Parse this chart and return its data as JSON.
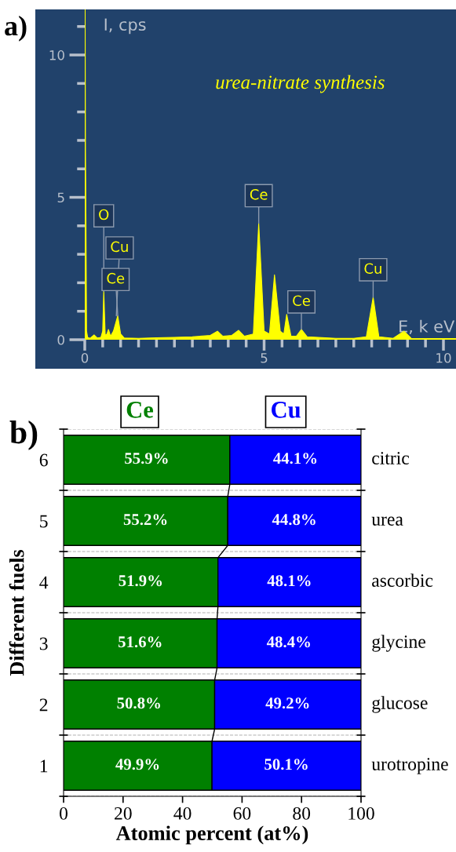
{
  "chart_data": [
    {
      "type": "area",
      "xlabel": "E, k eV",
      "ylabel": "I, cps",
      "x": [
        0,
        0.01,
        0.02,
        0.03,
        0.05,
        0.08,
        0.15,
        0.26,
        0.35,
        0.45,
        0.5,
        0.53,
        0.57,
        0.62,
        0.66,
        0.72,
        0.8,
        0.92,
        1.0,
        1.1,
        1.5,
        2,
        2.5,
        3,
        3.5,
        3.7,
        3.85,
        4.1,
        4.29,
        4.45,
        4.7,
        4.85,
        5.0,
        5.15,
        5.29,
        5.45,
        5.55,
        5.63,
        5.75,
        5.9,
        6.04,
        6.2,
        6.5,
        7,
        7.5,
        7.85,
        8.04,
        8.2,
        8.6,
        8.9,
        9.1,
        9.5,
        10.35
      ],
      "series": [
        {
          "color": "#ffff00",
          "values": [
            0,
            11.6,
            6.6,
            5.0,
            0.3,
            0.08,
            0.05,
            0.17,
            0.06,
            0.08,
            0.3,
            1.7,
            0.15,
            0.2,
            0.36,
            0.12,
            0.3,
            0.84,
            0.2,
            0.06,
            0.05,
            0.07,
            0.08,
            0.1,
            0.15,
            0.3,
            0.12,
            0.15,
            0.33,
            0.12,
            0.2,
            4.09,
            0.3,
            0.2,
            2.28,
            0.3,
            0.2,
            0.89,
            0.12,
            0.12,
            0.36,
            0.1,
            0.08,
            0.05,
            0.05,
            0.1,
            1.49,
            0.1,
            0.05,
            0.3,
            0.05,
            0.04,
            0.04
          ]
        }
      ],
      "xlim": [
        0,
        10.35
      ],
      "ylim": [
        0,
        11.6
      ],
      "xticks": [
        0,
        {
          "value": 0.5,
          "label": null
        },
        {
          "value": 1,
          "label": null
        },
        {
          "value": 1.5,
          "label": null
        },
        {
          "value": 2,
          "label": null
        },
        {
          "value": 2.5,
          "label": null
        },
        {
          "value": 3,
          "label": null
        },
        {
          "value": 3.5,
          "label": null
        },
        {
          "value": 4,
          "label": null
        },
        {
          "value": 4.5,
          "label": null
        },
        5,
        {
          "value": 5.5,
          "label": null
        },
        {
          "value": 6,
          "label": null
        },
        {
          "value": 6.5,
          "label": null
        },
        {
          "value": 7,
          "label": null
        },
        {
          "value": 7.5,
          "label": null
        },
        {
          "value": 8,
          "label": null
        },
        {
          "value": 8.5,
          "label": null
        },
        {
          "value": 9,
          "label": null
        },
        {
          "value": 9.5,
          "label": null
        },
        10
      ],
      "yticks": [
        0,
        {
          "value": 1,
          "label": null
        },
        {
          "value": 2,
          "label": null
        },
        {
          "value": 3,
          "label": null
        },
        {
          "value": 4,
          "label": null
        },
        5,
        {
          "value": 6,
          "label": null
        },
        {
          "value": 7,
          "label": null
        },
        {
          "value": 8,
          "label": null
        },
        {
          "value": 9,
          "label": null
        },
        10,
        {
          "value": 11,
          "label": null
        }
      ],
      "grid": false,
      "annotations": [
        "a)",
        "urea-nitrate synthesis",
        {
          "text": "O",
          "x": 0.53,
          "y": 1.7
        },
        {
          "text": "Cu",
          "x": 0.88,
          "y": 0.84
        },
        {
          "text": "Ce",
          "x": 0.92,
          "y": 0.84
        },
        {
          "text": "Ce",
          "x": 4.85,
          "y": 4.09
        },
        {
          "text": "Ce",
          "x": 6.04,
          "y": 0.36
        },
        {
          "text": "Cu",
          "x": 8.04,
          "y": 1.49
        }
      ]
    },
    {
      "type": "bar",
      "orientation": "horizontal",
      "stacked": true,
      "xlabel": "Atomic percent (at%)",
      "ylabel": "Different fuels",
      "categories": [
        "6",
        "5",
        "4",
        "3",
        "2",
        "1"
      ],
      "series": [
        {
          "name": "Ce",
          "color": "#008000",
          "values": [
            55.9,
            55.2,
            51.9,
            51.6,
            50.8,
            49.9
          ],
          "value_labels": [
            "55.9%",
            "55.2%",
            "51.9%",
            "51.6%",
            "50.8%",
            "49.9%"
          ]
        },
        {
          "name": "Cu",
          "color": "#0000ff",
          "values": [
            44.1,
            44.8,
            48.1,
            48.4,
            49.2,
            50.1
          ],
          "value_labels": [
            "44.1%",
            "44.8%",
            "48.1%",
            "48.4%",
            "49.2%",
            "50.1%"
          ]
        }
      ],
      "xlim": [
        0,
        100
      ],
      "xticks": [
        0,
        20,
        40,
        60,
        80,
        100
      ],
      "grid": "y",
      "legend": "top",
      "annotations": [
        "b)",
        "citric",
        "urea",
        "ascorbic",
        "glycine",
        "glucose",
        "urotropine"
      ]
    }
  ]
}
